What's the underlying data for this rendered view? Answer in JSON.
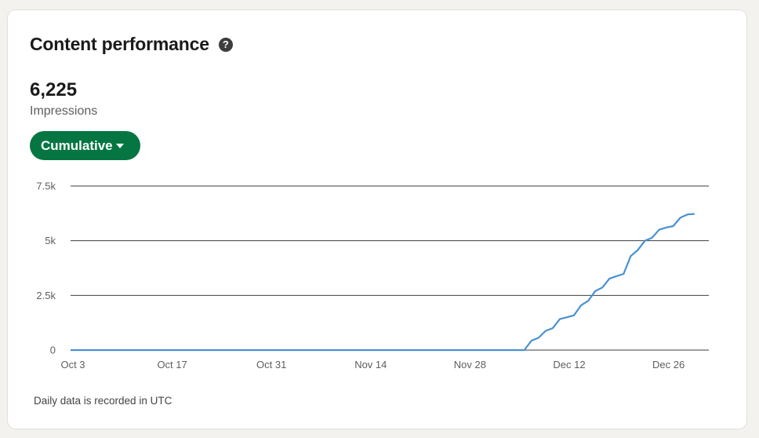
{
  "card": {
    "title": "Content performance",
    "help_icon": "question-circle-icon",
    "metric_value": "6,225",
    "metric_label": "Impressions",
    "dropdown_label": "Cumulative",
    "footnote": "Daily data is recorded in UTC"
  },
  "colors": {
    "accent": "#057642",
    "line": "#4a90d2",
    "grid": "#3d3d3d"
  },
  "chart_data": {
    "type": "line",
    "y_ticks": [
      {
        "label": "7.5k",
        "value": 7500
      },
      {
        "label": "5k",
        "value": 5000
      },
      {
        "label": "2.5k",
        "value": 2500
      },
      {
        "label": "0",
        "value": 0
      }
    ],
    "x_ticks": [
      "Oct 3",
      "Oct 17",
      "Oct 31",
      "Nov 14",
      "Nov 28",
      "Dec 12",
      "Dec 26"
    ],
    "ylim": [
      0,
      7500
    ],
    "grid": true,
    "series": [
      {
        "values": [
          {
            "date": "Oct 3",
            "value": 0
          },
          {
            "date": "Dec 6",
            "value": 0
          },
          {
            "date": "Dec 7",
            "value": 430
          },
          {
            "date": "Dec 8",
            "value": 560
          },
          {
            "date": "Dec 9",
            "value": 880
          },
          {
            "date": "Dec 10",
            "value": 1000
          },
          {
            "date": "Dec 11",
            "value": 1420
          },
          {
            "date": "Dec 12",
            "value": 1500
          },
          {
            "date": "Dec 13",
            "value": 1590
          },
          {
            "date": "Dec 14",
            "value": 2050
          },
          {
            "date": "Dec 15",
            "value": 2250
          },
          {
            "date": "Dec 16",
            "value": 2700
          },
          {
            "date": "Dec 17",
            "value": 2860
          },
          {
            "date": "Dec 18",
            "value": 3270
          },
          {
            "date": "Dec 19",
            "value": 3380
          },
          {
            "date": "Dec 20",
            "value": 3480
          },
          {
            "date": "Dec 21",
            "value": 4300
          },
          {
            "date": "Dec 22",
            "value": 4570
          },
          {
            "date": "Dec 23",
            "value": 5000
          },
          {
            "date": "Dec 24",
            "value": 5130
          },
          {
            "date": "Dec 25",
            "value": 5500
          },
          {
            "date": "Dec 26",
            "value": 5600
          },
          {
            "date": "Dec 27",
            "value": 5670
          },
          {
            "date": "Dec 28",
            "value": 6050
          },
          {
            "date": "Dec 29",
            "value": 6200
          },
          {
            "date": "Dec 30",
            "value": 6225
          }
        ]
      }
    ]
  }
}
